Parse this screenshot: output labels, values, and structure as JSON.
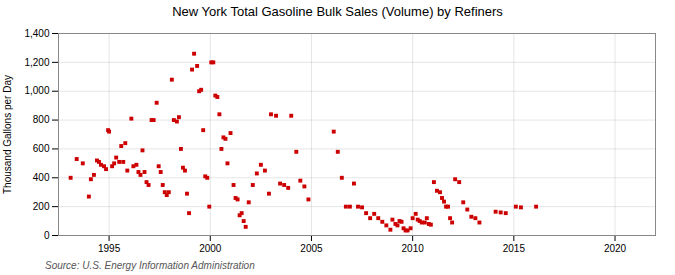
{
  "chart_data": {
    "type": "scatter",
    "title": "New York Total Gasoline Bulk Sales (Volume) by Refiners",
    "ylabel": "Thousand Gallons per Day",
    "caption": "Source: U.S. Energy Information Administration",
    "color": "#cc0000",
    "marker": "square",
    "grid": true,
    "xlim": [
      1992.5,
      2022.0
    ],
    "ylim": [
      0,
      1400
    ],
    "xticks": [
      1995,
      2000,
      2005,
      2010,
      2015,
      2020
    ],
    "yticks": [
      0,
      200,
      400,
      600,
      800,
      {
        "value": 1000,
        "label": "1,000"
      },
      {
        "value": 1200,
        "label": "1,200"
      },
      {
        "value": 1400,
        "label": "1,400"
      }
    ],
    "x": [
      1993.1,
      1993.4,
      1993.7,
      1994.0,
      1994.1,
      1994.25,
      1994.4,
      1994.5,
      1994.6,
      1994.75,
      1994.85,
      1994.95,
      1995.0,
      1995.15,
      1995.25,
      1995.35,
      1995.5,
      1995.6,
      1995.7,
      1995.8,
      1995.9,
      1996.1,
      1996.2,
      1996.35,
      1996.45,
      1996.55,
      1996.65,
      1996.75,
      1996.85,
      1996.95,
      1997.1,
      1997.2,
      1997.35,
      1997.45,
      1997.55,
      1997.65,
      1997.75,
      1997.85,
      1997.95,
      1998.1,
      1998.2,
      1998.35,
      1998.45,
      1998.55,
      1998.65,
      1998.75,
      1998.85,
      1998.95,
      1999.1,
      1999.2,
      1999.35,
      1999.45,
      1999.55,
      1999.65,
      1999.75,
      1999.85,
      1999.95,
      2000.05,
      2000.15,
      2000.25,
      2000.35,
      2000.45,
      2000.55,
      2000.65,
      2000.75,
      2000.85,
      2001.0,
      2001.15,
      2001.25,
      2001.35,
      2001.45,
      2001.55,
      2001.65,
      2001.75,
      2001.9,
      2002.1,
      2002.3,
      2002.5,
      2002.7,
      2002.9,
      2003.0,
      2003.25,
      2003.45,
      2003.65,
      2003.85,
      2004.0,
      2004.25,
      2004.45,
      2004.65,
      2004.85,
      2006.1,
      2006.3,
      2006.5,
      2006.7,
      2006.9,
      2007.1,
      2007.3,
      2007.5,
      2007.7,
      2007.9,
      2008.1,
      2008.3,
      2008.5,
      2008.7,
      2008.9,
      2009.0,
      2009.15,
      2009.25,
      2009.35,
      2009.45,
      2009.55,
      2009.65,
      2009.75,
      2009.9,
      2010.0,
      2010.15,
      2010.25,
      2010.35,
      2010.45,
      2010.6,
      2010.7,
      2010.8,
      2010.9,
      2011.05,
      2011.2,
      2011.35,
      2011.45,
      2011.55,
      2011.65,
      2011.75,
      2011.85,
      2011.95,
      2012.1,
      2012.3,
      2012.5,
      2012.7,
      2012.9,
      2013.1,
      2013.3,
      2014.1,
      2014.35,
      2014.6,
      2015.1,
      2015.35,
      2016.1
    ],
    "values": [
      400,
      530,
      500,
      270,
      390,
      420,
      520,
      510,
      490,
      480,
      460,
      730,
      720,
      480,
      500,
      540,
      510,
      620,
      510,
      640,
      450,
      810,
      480,
      490,
      440,
      420,
      590,
      440,
      370,
      350,
      800,
      800,
      920,
      480,
      440,
      350,
      300,
      280,
      300,
      1080,
      800,
      790,
      820,
      600,
      470,
      450,
      290,
      155,
      1150,
      1260,
      1175,
      1000,
      1010,
      730,
      410,
      400,
      200,
      1200,
      1200,
      970,
      960,
      840,
      600,
      680,
      670,
      500,
      710,
      350,
      260,
      250,
      140,
      155,
      100,
      60,
      230,
      350,
      430,
      490,
      450,
      290,
      840,
      830,
      360,
      350,
      330,
      830,
      580,
      380,
      340,
      250,
      720,
      580,
      400,
      200,
      200,
      360,
      200,
      195,
      155,
      120,
      150,
      120,
      95,
      70,
      40,
      110,
      80,
      70,
      100,
      95,
      50,
      35,
      35,
      50,
      120,
      150,
      110,
      100,
      90,
      90,
      120,
      80,
      75,
      370,
      310,
      300,
      260,
      235,
      200,
      200,
      120,
      90,
      390,
      370,
      230,
      180,
      130,
      120,
      90,
      165,
      160,
      155,
      200,
      195,
      200
    ]
  }
}
